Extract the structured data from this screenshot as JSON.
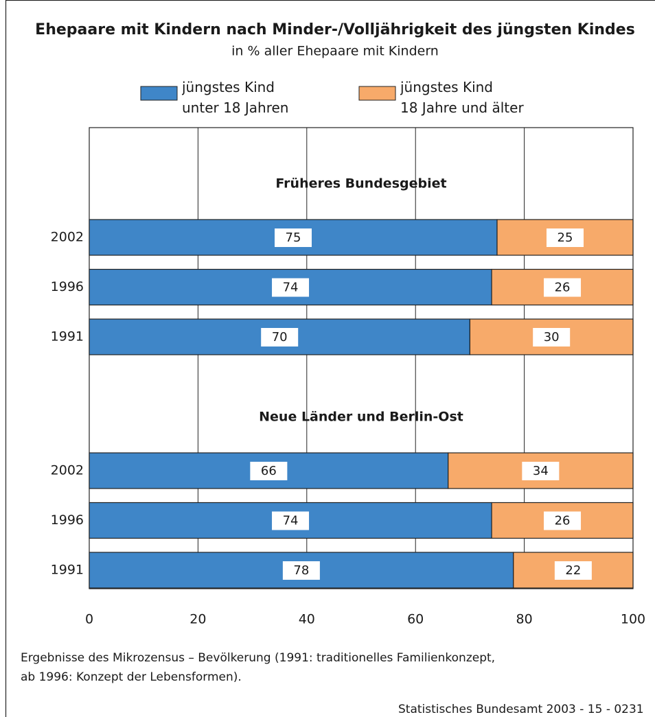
{
  "chart_data": {
    "type": "stacked-bar-horizontal",
    "title": "Ehepaare mit Kindern nach Minder-/Volljährigkeit des jüngsten Kindes",
    "subtitle": "in % aller Ehepaare mit Kindern",
    "series": [
      {
        "name": "jüngstes Kind\nunter 18 Jahren",
        "color": "#3f86c8"
      },
      {
        "name": "jüngstes Kind\n18 Jahre und älter",
        "color": "#f7aa6a"
      }
    ],
    "groups": [
      {
        "title": "Früheres Bundesgebiet",
        "categories": [
          "2002",
          "1996",
          "1991"
        ],
        "values": [
          [
            75,
            74,
            70
          ],
          [
            25,
            26,
            30
          ]
        ]
      },
      {
        "title": "Neue Länder und Berlin-Ost",
        "categories": [
          "2002",
          "1996",
          "1991"
        ],
        "values": [
          [
            66,
            74,
            78
          ],
          [
            34,
            26,
            22
          ]
        ]
      }
    ],
    "xlim": [
      0,
      100
    ],
    "xticks": [
      0,
      20,
      40,
      60,
      80,
      100
    ],
    "grid": true,
    "footnote": "Ergebnisse des Mikrozensus – Bevölkerung (1991: traditionelles Familienkonzept,\nab 1996: Konzept der Lebensformen).",
    "source": "Statistisches Bundesamt 2003 - 15 - 0231"
  }
}
